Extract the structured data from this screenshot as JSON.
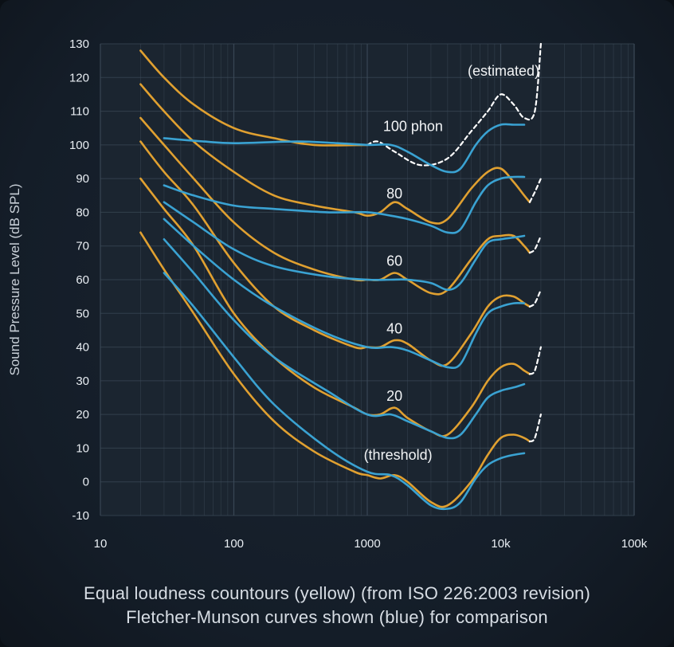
{
  "chart_data": {
    "type": "line",
    "ylabel": "Sound Pressure Level (dB SPL)",
    "xlabel": "",
    "x_scale": "log",
    "xlim": [
      10,
      100000
    ],
    "ylim": [
      -10,
      130
    ],
    "grid": true,
    "x_ticks": [
      "10",
      "100",
      "1000",
      "10k",
      "100k"
    ],
    "y_ticks": [
      "130",
      "120",
      "110",
      "100",
      "90",
      "80",
      "70",
      "60",
      "50",
      "40",
      "30",
      "20",
      "10",
      "0",
      "-10"
    ],
    "annotations": [
      "(estimated)",
      "100 phon",
      "80",
      "60",
      "40",
      "20",
      "(threshold)"
    ],
    "colors": {
      "iso": "#e0a030",
      "fletcher": "#3aa2d2",
      "estimated": "#ffffff",
      "grid": "#3c4a58"
    },
    "series": [
      {
        "group": "iso",
        "phon": "100",
        "points": [
          [
            20,
            128
          ],
          [
            30,
            120
          ],
          [
            50,
            112
          ],
          [
            100,
            105
          ],
          [
            200,
            102
          ],
          [
            400,
            100
          ],
          [
            1000,
            100
          ]
        ],
        "estimated": [
          [
            1000,
            100
          ],
          [
            1200,
            101
          ],
          [
            1600,
            98
          ],
          [
            2500,
            94
          ],
          [
            4000,
            96
          ],
          [
            6000,
            104
          ],
          [
            8000,
            110
          ],
          [
            10000,
            115
          ],
          [
            12500,
            112
          ],
          [
            15000,
            108
          ],
          [
            18000,
            110
          ],
          [
            20000,
            130
          ]
        ]
      },
      {
        "group": "iso",
        "phon": "80",
        "points": [
          [
            20,
            118
          ],
          [
            30,
            110
          ],
          [
            50,
            101
          ],
          [
            100,
            92
          ],
          [
            200,
            85
          ],
          [
            400,
            82
          ],
          [
            800,
            80
          ],
          [
            1000,
            79
          ],
          [
            1250,
            80
          ],
          [
            1600,
            83
          ],
          [
            2000,
            81
          ],
          [
            3000,
            77
          ],
          [
            4000,
            78
          ],
          [
            6000,
            87
          ],
          [
            8000,
            92
          ],
          [
            10000,
            93
          ],
          [
            12500,
            89
          ],
          [
            15000,
            85
          ],
          [
            16500,
            83
          ]
        ],
        "estimated": [
          [
            16500,
            83
          ],
          [
            18000,
            86
          ],
          [
            20000,
            90
          ]
        ]
      },
      {
        "group": "iso",
        "phon": "60",
        "points": [
          [
            20,
            108
          ],
          [
            30,
            100
          ],
          [
            50,
            90
          ],
          [
            100,
            77
          ],
          [
            200,
            68
          ],
          [
            400,
            63
          ],
          [
            800,
            60
          ],
          [
            1000,
            60
          ],
          [
            1250,
            60
          ],
          [
            1600,
            62
          ],
          [
            2000,
            60
          ],
          [
            3000,
            56
          ],
          [
            4000,
            57
          ],
          [
            6000,
            66
          ],
          [
            8000,
            72
          ],
          [
            10000,
            73
          ],
          [
            12500,
            73
          ],
          [
            15000,
            70
          ],
          [
            16500,
            68
          ]
        ],
        "estimated": [
          [
            16500,
            68
          ],
          [
            18000,
            69
          ],
          [
            20000,
            73
          ]
        ]
      },
      {
        "group": "iso",
        "phon": "40",
        "points": [
          [
            20,
            101
          ],
          [
            30,
            92
          ],
          [
            50,
            82
          ],
          [
            100,
            65
          ],
          [
            200,
            52
          ],
          [
            400,
            45
          ],
          [
            800,
            40
          ],
          [
            1000,
            40
          ],
          [
            1250,
            40
          ],
          [
            1600,
            42
          ],
          [
            2000,
            41
          ],
          [
            3000,
            36
          ],
          [
            4000,
            35
          ],
          [
            6000,
            44
          ],
          [
            8000,
            52
          ],
          [
            10000,
            55
          ],
          [
            12500,
            55
          ],
          [
            15000,
            53
          ],
          [
            16500,
            52
          ]
        ],
        "estimated": [
          [
            16500,
            52
          ],
          [
            18000,
            53
          ],
          [
            20000,
            57
          ]
        ]
      },
      {
        "group": "iso",
        "phon": "20",
        "points": [
          [
            20,
            90
          ],
          [
            30,
            81
          ],
          [
            50,
            70
          ],
          [
            100,
            50
          ],
          [
            200,
            37
          ],
          [
            400,
            28
          ],
          [
            800,
            22
          ],
          [
            1000,
            20
          ],
          [
            1250,
            20
          ],
          [
            1600,
            22
          ],
          [
            2000,
            19
          ],
          [
            3000,
            15
          ],
          [
            4000,
            14
          ],
          [
            6000,
            22
          ],
          [
            8000,
            30
          ],
          [
            10000,
            34
          ],
          [
            12500,
            35
          ],
          [
            15000,
            33
          ],
          [
            16500,
            32
          ]
        ],
        "estimated": [
          [
            16500,
            32
          ],
          [
            18000,
            33
          ],
          [
            20000,
            40
          ]
        ]
      },
      {
        "group": "iso",
        "phon": "threshold",
        "points": [
          [
            20,
            74
          ],
          [
            30,
            63
          ],
          [
            50,
            50
          ],
          [
            100,
            32
          ],
          [
            200,
            18
          ],
          [
            400,
            9
          ],
          [
            800,
            3
          ],
          [
            1000,
            2
          ],
          [
            1250,
            1
          ],
          [
            1600,
            2
          ],
          [
            2000,
            0
          ],
          [
            3000,
            -6
          ],
          [
            4000,
            -7
          ],
          [
            6000,
            0
          ],
          [
            8000,
            8
          ],
          [
            10000,
            13
          ],
          [
            12500,
            14
          ],
          [
            15000,
            13
          ],
          [
            16500,
            12
          ]
        ],
        "estimated": [
          [
            16500,
            12
          ],
          [
            18000,
            13
          ],
          [
            20000,
            20
          ]
        ]
      },
      {
        "group": "fletcher",
        "phon": "100",
        "points": [
          [
            30,
            102
          ],
          [
            60,
            101
          ],
          [
            100,
            100.5
          ],
          [
            300,
            101
          ],
          [
            600,
            100.5
          ],
          [
            1000,
            100
          ],
          [
            1500,
            100
          ],
          [
            2000,
            98
          ],
          [
            3000,
            94
          ],
          [
            4000,
            92
          ],
          [
            5000,
            93
          ],
          [
            6500,
            100
          ],
          [
            8000,
            104
          ],
          [
            10000,
            106
          ],
          [
            12500,
            106
          ],
          [
            15000,
            106
          ]
        ]
      },
      {
        "group": "fletcher",
        "phon": "80",
        "points": [
          [
            30,
            88
          ],
          [
            50,
            85
          ],
          [
            100,
            82
          ],
          [
            200,
            81
          ],
          [
            500,
            80
          ],
          [
            1000,
            80
          ],
          [
            1500,
            79
          ],
          [
            2000,
            78
          ],
          [
            3000,
            76
          ],
          [
            4000,
            74
          ],
          [
            5000,
            75
          ],
          [
            6500,
            83
          ],
          [
            8000,
            88
          ],
          [
            10000,
            90
          ],
          [
            12500,
            90.5
          ],
          [
            15000,
            90.5
          ]
        ]
      },
      {
        "group": "fletcher",
        "phon": "60",
        "points": [
          [
            30,
            83
          ],
          [
            50,
            77
          ],
          [
            100,
            69
          ],
          [
            200,
            64
          ],
          [
            500,
            61
          ],
          [
            1000,
            60
          ],
          [
            1500,
            60
          ],
          [
            2000,
            60
          ],
          [
            3000,
            59
          ],
          [
            4000,
            57
          ],
          [
            5000,
            59
          ],
          [
            6500,
            66
          ],
          [
            8000,
            71
          ],
          [
            10000,
            72
          ],
          [
            12500,
            72.5
          ],
          [
            15000,
            73
          ]
        ]
      },
      {
        "group": "fletcher",
        "phon": "40",
        "points": [
          [
            30,
            78
          ],
          [
            50,
            70
          ],
          [
            100,
            60
          ],
          [
            200,
            52
          ],
          [
            500,
            44
          ],
          [
            1000,
            40
          ],
          [
            1500,
            40
          ],
          [
            2000,
            39
          ],
          [
            3000,
            36
          ],
          [
            4000,
            34
          ],
          [
            5000,
            35
          ],
          [
            6500,
            44
          ],
          [
            8000,
            50
          ],
          [
            10000,
            52
          ],
          [
            12500,
            53
          ],
          [
            15000,
            53
          ]
        ]
      },
      {
        "group": "fletcher",
        "phon": "20",
        "points": [
          [
            30,
            72
          ],
          [
            50,
            62
          ],
          [
            100,
            48
          ],
          [
            200,
            37
          ],
          [
            500,
            27
          ],
          [
            1000,
            20
          ],
          [
            1500,
            20
          ],
          [
            2000,
            18
          ],
          [
            3000,
            15
          ],
          [
            4000,
            13
          ],
          [
            5000,
            14
          ],
          [
            6500,
            20
          ],
          [
            8000,
            25
          ],
          [
            10000,
            27
          ],
          [
            12500,
            28
          ],
          [
            15000,
            29
          ]
        ]
      },
      {
        "group": "fletcher",
        "phon": "threshold",
        "points": [
          [
            30,
            62
          ],
          [
            50,
            52
          ],
          [
            100,
            37
          ],
          [
            200,
            23
          ],
          [
            500,
            10
          ],
          [
            1000,
            3
          ],
          [
            1500,
            2
          ],
          [
            2000,
            -1
          ],
          [
            3000,
            -7
          ],
          [
            4000,
            -8
          ],
          [
            5000,
            -6
          ],
          [
            6500,
            1
          ],
          [
            8000,
            5
          ],
          [
            10000,
            7
          ],
          [
            12500,
            8
          ],
          [
            15000,
            8.5
          ]
        ]
      }
    ]
  },
  "caption": {
    "line1": "Equal loudness countours (yellow) (from ISO 226:2003 revision)",
    "line2": "Fletcher-Munson curves shown (blue) for comparison"
  }
}
